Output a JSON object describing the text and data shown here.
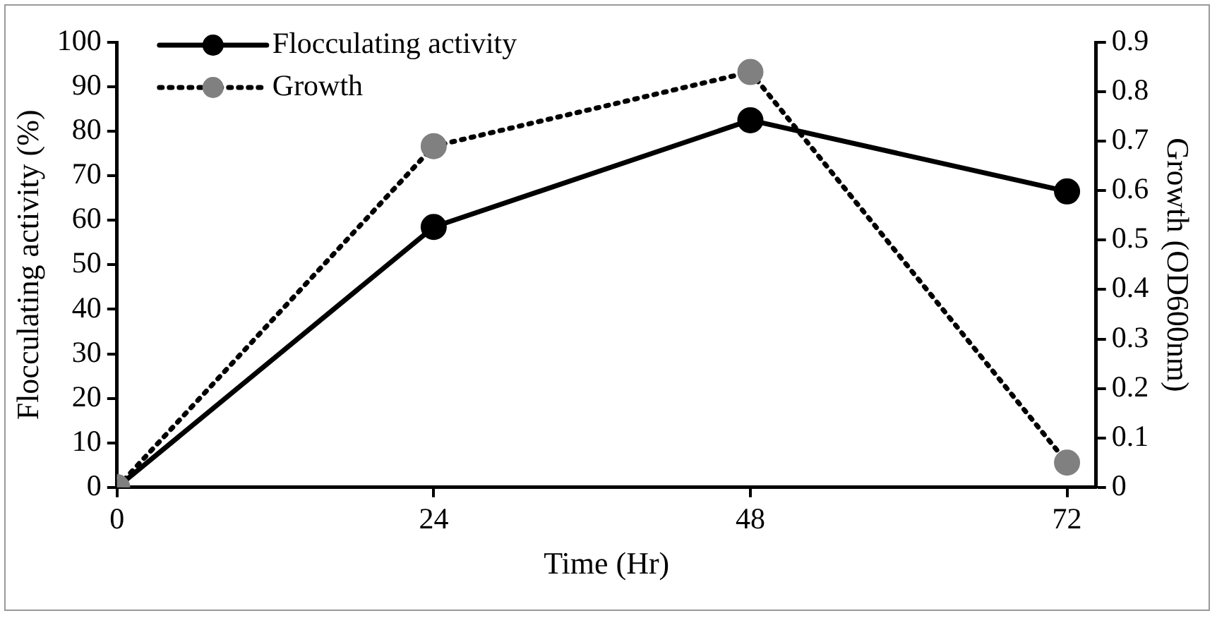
{
  "chart_data": {
    "type": "line",
    "xlabel": "Time (Hr)",
    "ylabel": "Flocculating activity (%)",
    "y2label": "Growth (OD600nm)",
    "x": [
      0,
      24,
      48,
      72
    ],
    "xlim": [
      0,
      74.2
    ],
    "xticks": [
      0,
      24,
      48,
      72
    ],
    "ylim": [
      0,
      100
    ],
    "yticks": [
      0,
      10,
      20,
      30,
      40,
      50,
      60,
      70,
      80,
      90,
      100
    ],
    "y2lim": [
      0,
      0.9
    ],
    "y2ticks": [
      {
        "value": 0,
        "label": "0"
      },
      0.1,
      0.2,
      0.3,
      0.4,
      0.5,
      0.6,
      0.7,
      0.8,
      0.9
    ],
    "grid": false,
    "legend": "top left",
    "marker": "circle",
    "series": [
      {
        "name": "Flocculating activity",
        "color": "#000000",
        "colors": [
          "#808080",
          "#000000",
          "#000000",
          "#000000"
        ],
        "line_style": "solid",
        "values": [
          0,
          58.5,
          82.5,
          66.5
        ]
      },
      {
        "name": "Growth",
        "color": "#000000",
        "colors": [
          "#808080",
          "#808080",
          "#808080",
          "#808080"
        ],
        "line_style": "dotted",
        "axis": "y2",
        "values": [
          0,
          0.69,
          0.84,
          0.05
        ]
      }
    ]
  }
}
